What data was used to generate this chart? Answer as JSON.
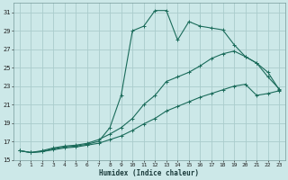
{
  "xlabel": "Humidex (Indice chaleur)",
  "bg_color": "#cce8e8",
  "grid_color": "#aacccc",
  "line_color": "#1a6b5a",
  "xlim": [
    -0.5,
    23.5
  ],
  "ylim": [
    15,
    32
  ],
  "yticks": [
    15,
    17,
    19,
    21,
    23,
    25,
    27,
    29,
    31
  ],
  "xticks": [
    0,
    1,
    2,
    3,
    4,
    5,
    6,
    7,
    8,
    9,
    10,
    11,
    12,
    13,
    14,
    15,
    16,
    17,
    18,
    19,
    20,
    21,
    22,
    23
  ],
  "series1_x": [
    0,
    1,
    2,
    3,
    4,
    5,
    6,
    7,
    8,
    9,
    10,
    11,
    12,
    13,
    14,
    15,
    16,
    17,
    18,
    19,
    20,
    21,
    22,
    23
  ],
  "series1_y": [
    16.0,
    15.8,
    15.9,
    16.2,
    16.4,
    16.5,
    16.7,
    17.0,
    18.5,
    22.0,
    29.0,
    29.5,
    31.2,
    31.2,
    28.0,
    30.0,
    29.5,
    29.3,
    29.1,
    27.5,
    26.2,
    25.5,
    24.5,
    22.6
  ],
  "series2_x": [
    0,
    1,
    2,
    3,
    4,
    5,
    6,
    7,
    8,
    9,
    10,
    11,
    12,
    13,
    14,
    15,
    16,
    17,
    18,
    19,
    20,
    21,
    22,
    23
  ],
  "series2_y": [
    16.0,
    15.8,
    16.0,
    16.3,
    16.5,
    16.6,
    16.8,
    17.2,
    17.8,
    18.5,
    19.5,
    21.0,
    22.0,
    23.5,
    24.0,
    24.5,
    25.2,
    26.0,
    26.5,
    26.8,
    26.2,
    25.5,
    24.0,
    22.7
  ],
  "series3_x": [
    0,
    1,
    2,
    3,
    4,
    5,
    6,
    7,
    8,
    9,
    10,
    11,
    12,
    13,
    14,
    15,
    16,
    17,
    18,
    19,
    20,
    21,
    22,
    23
  ],
  "series3_y": [
    16.0,
    15.8,
    15.9,
    16.1,
    16.3,
    16.4,
    16.6,
    16.8,
    17.2,
    17.6,
    18.2,
    18.9,
    19.5,
    20.3,
    20.8,
    21.3,
    21.8,
    22.2,
    22.6,
    23.0,
    23.2,
    22.0,
    22.2,
    22.5
  ]
}
